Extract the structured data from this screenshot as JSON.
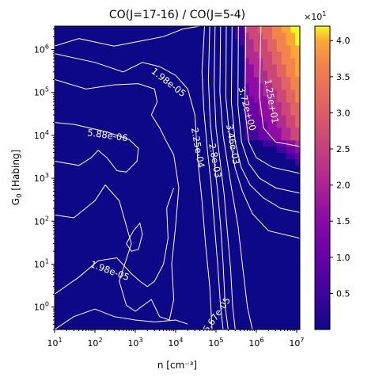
{
  "chart_data": {
    "type": "heatmap",
    "title": "CO(J=17-16) / CO(J=5-4)",
    "xlabel": "n [cm⁻³]",
    "ylabel_main": "G",
    "ylabel_sub": "0",
    "ylabel_rest": " [Habing]",
    "x_scale": "log",
    "y_scale": "log",
    "xlim": [
      10,
      12000000
    ],
    "ylim": [
      0.3,
      3500000
    ],
    "x_ticks": [
      {
        "value": 10,
        "base": "10",
        "exp": "1"
      },
      {
        "value": 100,
        "base": "10",
        "exp": "2"
      },
      {
        "value": 1000,
        "base": "10",
        "exp": "3"
      },
      {
        "value": 10000,
        "base": "10",
        "exp": "4"
      },
      {
        "value": 100000,
        "base": "10",
        "exp": "5"
      },
      {
        "value": 1000000,
        "base": "10",
        "exp": "6"
      },
      {
        "value": 10000000,
        "base": "10",
        "exp": "7"
      }
    ],
    "y_ticks": [
      {
        "value": 1,
        "base": "10",
        "exp": "0"
      },
      {
        "value": 10,
        "base": "10",
        "exp": "1"
      },
      {
        "value": 100,
        "base": "10",
        "exp": "2"
      },
      {
        "value": 1000,
        "base": "10",
        "exp": "3"
      },
      {
        "value": 10000,
        "base": "10",
        "exp": "4"
      },
      {
        "value": 100000,
        "base": "10",
        "exp": "5"
      },
      {
        "value": 1000000,
        "base": "10",
        "exp": "6"
      }
    ],
    "colormap": "plasma",
    "colorbar": {
      "multiplier_base": "×10",
      "multiplier_exp": "1",
      "ticks": [
        "0.5",
        "1.0",
        "1.5",
        "2.0",
        "2.5",
        "3.0",
        "3.5",
        "4.0"
      ],
      "tick_values": [
        0.5,
        1.0,
        1.5,
        2.0,
        2.5,
        3.0,
        3.5,
        4.0
      ],
      "range": [
        0.0,
        4.2
      ]
    },
    "contour_labels": [
      {
        "text": "1.98e-05",
        "x": 6000,
        "y": 150000,
        "angle": 38
      },
      {
        "text": "5.88e-06",
        "x": 200,
        "y": 8500,
        "angle": 8
      },
      {
        "text": "1.98e-05",
        "x": 220,
        "y": 6,
        "angle": 20
      },
      {
        "text": "6.67e-05",
        "x": 120000,
        "y": 0.6,
        "angle": -55
      },
      {
        "text": "1.25e+01",
        "x": 2000000,
        "y": 60000,
        "angle": 80
      },
      {
        "text": "3.72e+00",
        "x": 500000,
        "y": 40000,
        "angle": 75
      },
      {
        "text": "2.25e-04",
        "x": 30000,
        "y": 5000,
        "angle": 80
      },
      {
        "text": "3.46e-03",
        "x": 220000,
        "y": 6000,
        "angle": 80
      },
      {
        "text": "2.8e-03",
        "x": 80000,
        "y": 2500,
        "angle": 80
      }
    ],
    "background_value": 0.0,
    "hot_region": {
      "description_value_max": 4.2,
      "x_range": [
        300000,
        12000000
      ],
      "y_range": [
        2000,
        3500000
      ]
    }
  }
}
